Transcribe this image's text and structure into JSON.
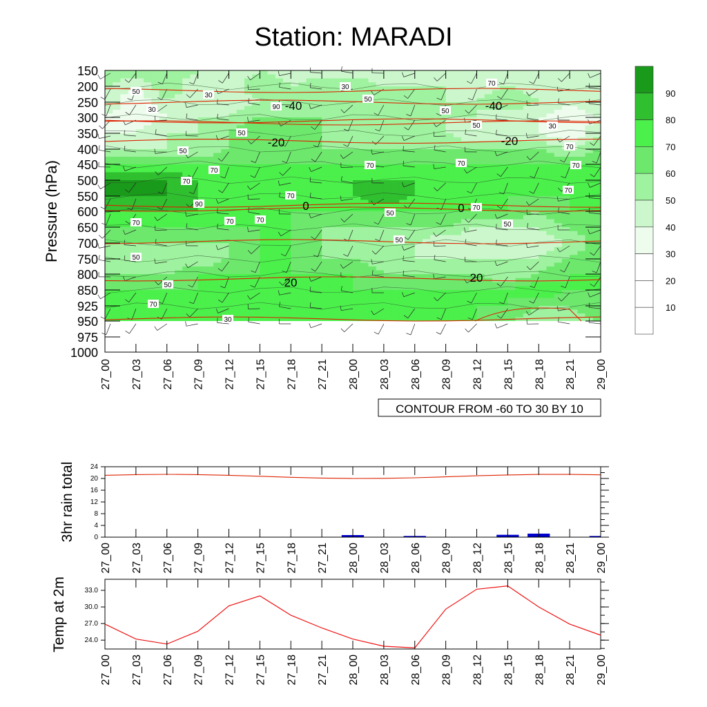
{
  "chart_data": [
    {
      "type": "heatmap",
      "title": "Station: MARADI",
      "ylabel": "Pressure (hPa)",
      "xlabel": "",
      "x_ticks": [
        "27_00",
        "27_03",
        "27_06",
        "27_09",
        "27_12",
        "27_15",
        "27_18",
        "27_21",
        "28_00",
        "28_03",
        "28_06",
        "28_09",
        "28_12",
        "28_15",
        "28_18",
        "28_21",
        "29_00"
      ],
      "y_ticks": [
        150,
        200,
        250,
        300,
        350,
        400,
        450,
        500,
        550,
        600,
        650,
        700,
        750,
        800,
        850,
        925,
        950,
        975,
        1000
      ],
      "fill_levels": [
        10,
        20,
        30,
        40,
        50,
        60,
        70,
        80,
        90
      ],
      "fill_colors": [
        "#ffffff",
        "#ffffff",
        "#ffffff",
        "#eefcee",
        "#ccf7cc",
        "#9ff29f",
        "#6de86d",
        "#4bf04b",
        "#2fbf2f",
        "#1a9a1a"
      ],
      "green_contour_labels": [
        "50",
        "30",
        "50",
        "30",
        "50",
        "30",
        "50",
        "90",
        "70",
        "70",
        "90",
        "70",
        "70",
        "70",
        "70",
        "70",
        "50",
        "50",
        "50",
        "70",
        "70",
        "70",
        "50",
        "50",
        "70",
        "70",
        "70",
        "30",
        "70",
        "50",
        "50",
        "30"
      ],
      "temperature_note": "CONTOUR FROM -60 TO 30 BY 10",
      "temperature_labels": [
        "-40",
        "-40",
        "-20",
        "-20",
        "0",
        "0",
        "20",
        "20"
      ],
      "temperature_levels_hpa": {
        "-40": 250,
        "-20": 375,
        "0": 580,
        "20": 815
      },
      "temperature_color": "#dd2200",
      "rh_grid": {
        "pressure_rows": [
          150,
          200,
          250,
          300,
          350,
          400,
          450,
          500,
          550,
          600,
          650,
          700,
          750,
          800,
          850,
          925,
          950
        ],
        "values": [
          [
            60,
            55,
            60,
            50,
            40,
            50,
            40,
            40,
            40,
            40,
            50,
            40,
            40,
            50,
            40,
            40,
            50
          ],
          [
            50,
            40,
            60,
            40,
            40,
            60,
            50,
            60,
            60,
            50,
            50,
            50,
            40,
            50,
            40,
            40,
            40
          ],
          [
            50,
            30,
            50,
            40,
            40,
            50,
            60,
            50,
            50,
            50,
            50,
            50,
            50,
            60,
            50,
            40,
            50
          ],
          [
            40,
            30,
            40,
            50,
            50,
            60,
            60,
            60,
            60,
            50,
            50,
            50,
            50,
            40,
            40,
            30,
            40
          ],
          [
            40,
            40,
            50,
            50,
            60,
            70,
            60,
            60,
            50,
            50,
            50,
            50,
            40,
            40,
            40,
            30,
            50
          ],
          [
            50,
            50,
            50,
            50,
            60,
            70,
            60,
            60,
            60,
            60,
            60,
            60,
            60,
            60,
            60,
            50,
            60
          ],
          [
            70,
            70,
            70,
            70,
            70,
            70,
            70,
            70,
            70,
            70,
            70,
            70,
            70,
            70,
            70,
            70,
            70
          ],
          [
            90,
            90,
            90,
            80,
            70,
            70,
            70,
            70,
            80,
            80,
            80,
            70,
            70,
            70,
            70,
            70,
            70
          ],
          [
            90,
            90,
            90,
            80,
            80,
            70,
            70,
            70,
            80,
            90,
            80,
            70,
            70,
            70,
            70,
            70,
            70
          ],
          [
            80,
            80,
            80,
            80,
            70,
            70,
            70,
            70,
            70,
            70,
            70,
            70,
            70,
            70,
            60,
            70,
            70
          ],
          [
            70,
            70,
            70,
            70,
            70,
            70,
            70,
            60,
            60,
            60,
            60,
            60,
            50,
            50,
            50,
            60,
            70
          ],
          [
            60,
            60,
            60,
            60,
            60,
            70,
            70,
            60,
            50,
            50,
            50,
            40,
            40,
            40,
            40,
            50,
            70
          ],
          [
            50,
            50,
            50,
            50,
            60,
            70,
            70,
            60,
            60,
            50,
            50,
            50,
            50,
            50,
            50,
            60,
            70
          ],
          [
            60,
            60,
            60,
            70,
            70,
            70,
            70,
            70,
            70,
            60,
            60,
            60,
            60,
            50,
            60,
            70,
            70
          ],
          [
            70,
            70,
            70,
            70,
            70,
            70,
            70,
            70,
            70,
            70,
            70,
            70,
            70,
            70,
            80,
            70,
            70
          ],
          [
            70,
            70,
            80,
            80,
            80,
            70,
            70,
            70,
            70,
            70,
            70,
            70,
            70,
            70,
            60,
            60,
            70
          ],
          [
            70,
            70,
            70,
            70,
            70,
            70,
            70,
            70,
            70,
            70,
            70,
            70,
            70,
            60,
            50,
            50,
            60
          ]
        ]
      }
    },
    {
      "type": "bar",
      "ylabel": "3hr rain total",
      "categories": [
        "27_00",
        "27_03",
        "27_06",
        "27_09",
        "27_12",
        "27_15",
        "27_18",
        "27_21",
        "28_00",
        "28_03",
        "28_06",
        "28_09",
        "28_12",
        "28_15",
        "28_18",
        "28_21",
        "29_00"
      ],
      "values": [
        0,
        0,
        0,
        0,
        0,
        0,
        0,
        0.1,
        0.7,
        0.05,
        0.4,
        0.05,
        0,
        0.8,
        1.2,
        0,
        0.4
      ],
      "ylim": [
        0,
        24
      ],
      "y_ticks": [
        0,
        4,
        8,
        12,
        16,
        20,
        24
      ],
      "color": "#0000cc"
    },
    {
      "type": "line",
      "ylabel": "Temp at 2m",
      "categories": [
        "27_00",
        "27_03",
        "27_06",
        "27_09",
        "27_12",
        "27_15",
        "27_18",
        "27_21",
        "28_00",
        "28_03",
        "28_06",
        "28_09",
        "28_12",
        "28_15",
        "28_18",
        "28_21",
        "29_00"
      ],
      "values": [
        26.9,
        24.2,
        23.3,
        25.6,
        30.2,
        32.0,
        28.5,
        26.2,
        24.2,
        22.9,
        22.6,
        29.6,
        33.2,
        33.8,
        30.0,
        26.9,
        24.9
      ],
      "ylim": [
        22.4,
        35.0
      ],
      "y_ticks": [
        "24.0",
        "27.0",
        "30.0",
        "33.0"
      ],
      "color": "#ee1111"
    }
  ]
}
